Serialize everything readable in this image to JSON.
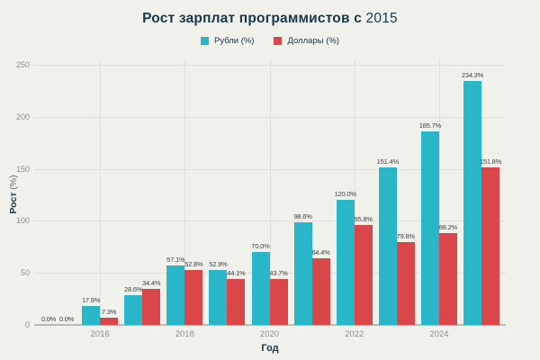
{
  "title": {
    "main": "Рост зарплат программистов с",
    "year": "2015"
  },
  "legend": {
    "items": [
      {
        "label": "Рубли (%)",
        "color": "#29b6c8"
      },
      {
        "label": "Доллары (%)",
        "color": "#d9474b"
      }
    ]
  },
  "axes": {
    "y_title_main": "Рост",
    "y_title_unit": "(%)",
    "x_title": "Год",
    "y_ticks": [
      0,
      50,
      100,
      150,
      200,
      250
    ],
    "x_tick_labels": [
      "2016",
      "2018",
      "2020",
      "2022",
      "2024"
    ]
  },
  "colors": {
    "background": "#f0f1eb",
    "rubles": "#29b6c8",
    "dollars": "#d9474b",
    "title_text": "#15384d",
    "tick_text": "#8e9089",
    "value_label_text": "#3f4347",
    "gridline": "#e0e1da",
    "baseline": "#b9bab3"
  },
  "chart_data": {
    "type": "bar",
    "title": "Рост зарплат программистов с 2015",
    "xlabel": "Год",
    "ylabel": "Рост (%)",
    "ylim": [
      0,
      250
    ],
    "grid": true,
    "legend_position": "top",
    "categories": [
      "2015",
      "2016",
      "2017",
      "2018",
      "2019",
      "2020",
      "2021",
      "2022",
      "2023",
      "2024",
      "2025"
    ],
    "series": [
      {
        "name": "Рубли (%)",
        "color": "#29b6c8",
        "values": [
          0.0,
          17.9,
          28.6,
          57.1,
          52.9,
          70.0,
          98.6,
          120.0,
          151.4,
          185.7,
          234.3
        ]
      },
      {
        "name": "Доллары (%)",
        "color": "#d9474b",
        "values": [
          0.0,
          7.3,
          34.4,
          52.8,
          44.1,
          43.7,
          64.4,
          95.8,
          79.8,
          88.2,
          151.8
        ]
      }
    ],
    "value_label_format": "one-decimal-percent"
  }
}
